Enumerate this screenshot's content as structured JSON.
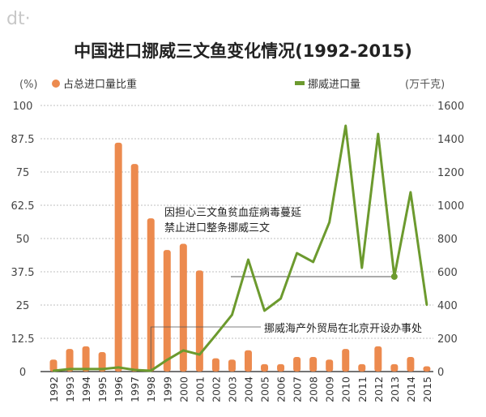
{
  "logo": "dt·",
  "chart_data": {
    "type": "bar+line",
    "title": "中国进口挪威三文鱼变化情况(1992-2015)",
    "left_unit": "(%)",
    "right_unit": "(万千克)",
    "categories": [
      "1992",
      "1993",
      "1994",
      "1995",
      "1996",
      "1997",
      "1998",
      "1999",
      "2000",
      "2001",
      "2002",
      "2003",
      "2004",
      "2005",
      "2006",
      "2007",
      "2008",
      "2009",
      "2010",
      "2011",
      "2012",
      "2013",
      "2014",
      "2015"
    ],
    "series": [
      {
        "name": "占总进口量比重",
        "type": "bar",
        "axis": "left",
        "color": "#ec8a4e",
        "values": [
          4.5,
          8.5,
          9.5,
          7.3,
          86,
          78,
          57.6,
          45.7,
          48,
          38,
          5,
          4.5,
          8,
          2.8,
          2.8,
          5.5,
          5.5,
          4.5,
          8.5,
          2.8,
          9.5,
          2.8,
          5.5,
          2
        ]
      },
      {
        "name": "挪威进口量",
        "type": "line",
        "axis": "right",
        "color": "#6c9a2e",
        "values": [
          5,
          15,
          15,
          15,
          25,
          10,
          5,
          70,
          127,
          102,
          220,
          341,
          673,
          366,
          439,
          712,
          659,
          898,
          1478,
          624,
          1429,
          571,
          1078,
          400
        ]
      }
    ],
    "left_axis": {
      "ylim": [
        0,
        100
      ],
      "ticks": [
        "0",
        "12.5",
        "25",
        "37.5",
        "50",
        "62.5",
        "75",
        "87.5",
        "100"
      ]
    },
    "right_axis": {
      "ylim": [
        0,
        1600
      ],
      "ticks": [
        "0",
        "200",
        "400",
        "600",
        "800",
        "1000",
        "1200",
        "1400",
        "1600"
      ]
    },
    "grid": "dashed horizontal",
    "legend": "top",
    "annotations": [
      {
        "text_lines": [
          "因担心三文鱼贫血症病毒蔓延",
          "禁止进口整条挪威三文"
        ],
        "year": "2013"
      },
      {
        "text": "挪威海产外贸局在北京开设办事处",
        "year": "1998"
      }
    ]
  }
}
